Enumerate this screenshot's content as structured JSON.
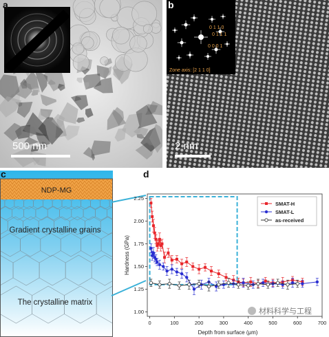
{
  "panels": {
    "a": {
      "label": "a",
      "scale_bar": "500 nm"
    },
    "b": {
      "label": "b",
      "scale_bar": "2 nm",
      "saed_indices": [
        "0 1 1 0",
        "0 1 1 1",
        "0 0 0 1"
      ],
      "zone_axis": "Zone axis: [2 1 1 0]"
    },
    "c": {
      "label": "c",
      "layers": {
        "top": "NDP-MG",
        "middle": "Gradient crystalline grains",
        "bottom": "The crystalline matrix"
      }
    },
    "d": {
      "label": "d"
    }
  },
  "colors": {
    "smat_h": "#e8262b",
    "smat_l": "#2a2fd1",
    "as_received": "#333333",
    "dashed_box": "#3ab1d8",
    "ndp_band": "#f0a246"
  },
  "chart_data": {
    "type": "scatter",
    "title": "",
    "xlabel": "Depth from surface (μm)",
    "ylabel": "Hardness (GPa)",
    "xlim": [
      -10,
      700
    ],
    "ylim": [
      0.95,
      2.3
    ],
    "xticks": [
      0,
      100,
      200,
      300,
      400,
      500,
      600,
      700
    ],
    "yticks": [
      1.0,
      1.25,
      1.5,
      1.75,
      2.0,
      2.25
    ],
    "legend_position": "top-right",
    "series": [
      {
        "name": "SMAT-H",
        "color": "#e8262b",
        "marker": "square",
        "x": [
          5,
          10,
          15,
          20,
          25,
          30,
          35,
          40,
          45,
          50,
          60,
          75,
          90,
          110,
          130,
          150,
          175,
          200,
          225,
          250,
          280,
          310,
          340,
          360,
          380,
          410,
          440,
          470,
          500,
          540,
          580,
          620
        ],
        "y": [
          2.2,
          2.05,
          1.95,
          1.87,
          1.8,
          1.73,
          1.75,
          1.8,
          1.73,
          1.75,
          1.6,
          1.65,
          1.57,
          1.58,
          1.53,
          1.55,
          1.5,
          1.47,
          1.49,
          1.45,
          1.42,
          1.38,
          1.35,
          1.33,
          1.32,
          1.33,
          1.31,
          1.34,
          1.32,
          1.33,
          1.35,
          1.33
        ],
        "err": [
          0.05,
          0.06,
          0.07,
          0.06,
          0.05,
          0.06,
          0.05,
          0.07,
          0.06,
          0.05,
          0.06,
          0.05,
          0.05,
          0.04,
          0.05,
          0.05,
          0.04,
          0.05,
          0.04,
          0.05,
          0.04,
          0.04,
          0.05,
          0.04,
          0.04,
          0.05,
          0.04,
          0.04,
          0.04,
          0.05,
          0.04,
          0.04
        ]
      },
      {
        "name": "SMAT-L",
        "color": "#2a2fd1",
        "marker": "circle",
        "x": [
          5,
          10,
          15,
          20,
          25,
          30,
          40,
          55,
          70,
          90,
          110,
          130,
          150,
          180,
          210,
          240,
          270,
          300,
          340,
          380,
          420,
          460,
          500,
          540,
          580,
          620,
          680
        ],
        "y": [
          1.7,
          1.62,
          1.65,
          1.6,
          1.58,
          1.55,
          1.52,
          1.5,
          1.45,
          1.47,
          1.44,
          1.42,
          1.38,
          1.25,
          1.3,
          1.33,
          1.28,
          1.3,
          1.31,
          1.32,
          1.3,
          1.32,
          1.31,
          1.3,
          1.32,
          1.31,
          1.33
        ],
        "err": [
          0.05,
          0.05,
          0.06,
          0.05,
          0.05,
          0.04,
          0.05,
          0.04,
          0.05,
          0.05,
          0.04,
          0.05,
          0.05,
          0.06,
          0.05,
          0.04,
          0.05,
          0.04,
          0.04,
          0.05,
          0.04,
          0.04,
          0.04,
          0.04,
          0.05,
          0.04,
          0.04
        ]
      },
      {
        "name": "as-received",
        "color": "#333333",
        "marker": "open-circle",
        "x": [
          5,
          40,
          80,
          120,
          160,
          200,
          240,
          280,
          320,
          360,
          400,
          440,
          480,
          520,
          560,
          600
        ],
        "y": [
          1.32,
          1.3,
          1.31,
          1.29,
          1.3,
          1.31,
          1.28,
          1.3,
          1.32,
          1.3,
          1.29,
          1.31,
          1.3,
          1.32,
          1.3,
          1.31
        ],
        "err": [
          0.04,
          0.04,
          0.05,
          0.04,
          0.05,
          0.04,
          0.05,
          0.04,
          0.05,
          0.04,
          0.04,
          0.05,
          0.04,
          0.04,
          0.05,
          0.04
        ]
      }
    ],
    "highlight_box": {
      "x": [
        0,
        355
      ],
      "y": [
        1.3,
        2.27
      ]
    },
    "watermark": "材料科学与工程"
  }
}
